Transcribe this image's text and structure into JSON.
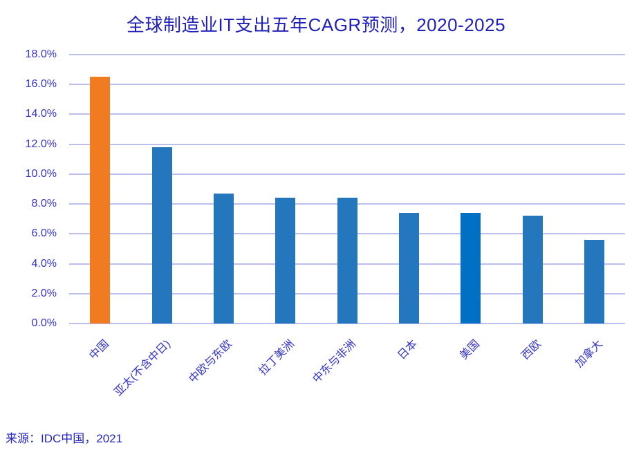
{
  "chart_data": {
    "type": "bar",
    "title": "全球制造业IT支出五年CAGR预测，2020-2025",
    "categories": [
      "中国",
      "亚太(不含中日)",
      "中欧与东欧",
      "拉丁美洲",
      "中东与非洲",
      "日本",
      "美国",
      "西欧",
      "加拿大"
    ],
    "values": [
      16.5,
      11.8,
      8.7,
      8.4,
      8.4,
      7.4,
      7.4,
      7.2,
      5.6
    ],
    "bar_colors": [
      "#F07B21",
      "#2577BD",
      "#2577BD",
      "#2577BD",
      "#2577BD",
      "#2577BD",
      "#0070C4",
      "#2577BD",
      "#2577BD"
    ],
    "highlight_color": "#F07B21",
    "default_bar_color": "#2577BD",
    "us_bar_color": "#0070C4",
    "xlabel": "",
    "ylabel": "",
    "ylim": [
      0,
      18
    ],
    "ytick_step": 2,
    "ytick_labels": [
      "0.0%",
      "2.0%",
      "4.0%",
      "6.0%",
      "8.0%",
      "10.0%",
      "12.0%",
      "14.0%",
      "16.0%",
      "18.0%"
    ],
    "grid": true,
    "legend": false
  },
  "source_note": "来源：IDC中国，2021",
  "colors": {
    "title_text": "#1E1EB8",
    "axis_text": "#3434CF",
    "gridline": "#BDBEF0",
    "source_text": "#2525C4",
    "background": "#FFFFFF"
  }
}
